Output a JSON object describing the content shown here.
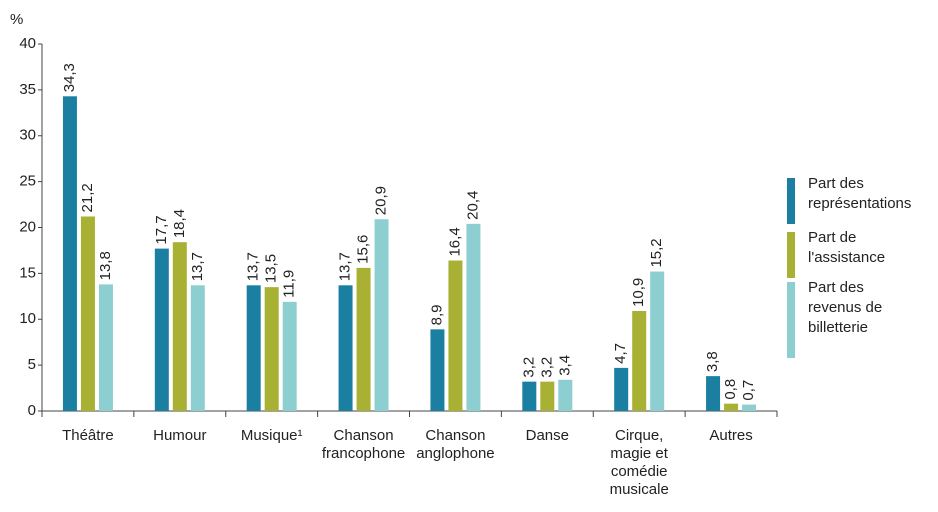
{
  "chart_data": {
    "type": "bar",
    "y_label": "%",
    "categories": [
      "Théâtre",
      "Humour",
      "Musique¹",
      "Chanson francophone",
      "Chanson anglophone",
      "Danse",
      "Cirque, magie et comédie musicale",
      "Autres"
    ],
    "series": [
      {
        "name": "Part des représentations",
        "color": "#1b7fa1",
        "values": [
          34.3,
          17.7,
          13.7,
          13.7,
          8.9,
          3.2,
          4.7,
          3.8
        ],
        "value_labels": [
          "34,3",
          "17,7",
          "13,7",
          "13,7",
          "8,9",
          "3,2",
          "4,7",
          "3,8"
        ]
      },
      {
        "name": "Part de l'assistance",
        "color": "#a8b133",
        "values": [
          21.2,
          18.4,
          13.5,
          15.6,
          16.4,
          3.2,
          10.9,
          0.8
        ],
        "value_labels": [
          "21,2",
          "18,4",
          "13,5",
          "15,6",
          "16,4",
          "3,2",
          "10,9",
          "0,8"
        ]
      },
      {
        "name": "Part des revenus de billetterie",
        "color": "#8dcfd1",
        "values": [
          13.8,
          13.7,
          11.9,
          20.9,
          20.4,
          3.4,
          15.2,
          0.7
        ],
        "value_labels": [
          "13,8",
          "13,7",
          "11,9",
          "20,9",
          "20,4",
          "3,4",
          "15,2",
          "0,7"
        ]
      }
    ],
    "ylim": [
      0,
      40
    ],
    "yticks": [
      0,
      5,
      10,
      15,
      20,
      25,
      30,
      35,
      40
    ],
    "grid": false,
    "legend": "right"
  }
}
